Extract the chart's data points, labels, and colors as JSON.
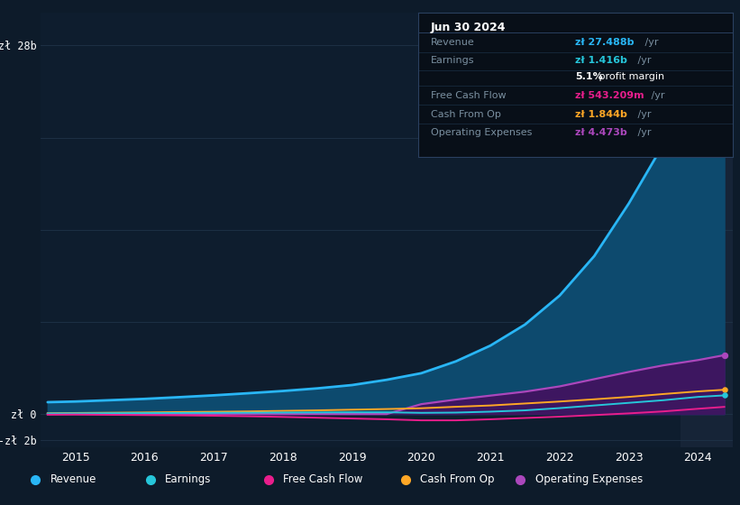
{
  "bg_color": "#0d1b2a",
  "plot_bg_color": "#0e1d2e",
  "highlight_bg": "#162437",
  "grid_color": "#1f3348",
  "years": [
    2014.6,
    2015.0,
    2015.5,
    2016.0,
    2016.5,
    2017.0,
    2017.5,
    2018.0,
    2018.5,
    2019.0,
    2019.5,
    2020.0,
    2020.5,
    2021.0,
    2021.5,
    2022.0,
    2022.5,
    2023.0,
    2023.5,
    2024.0,
    2024.38
  ],
  "revenue": [
    0.9,
    0.95,
    1.05,
    1.15,
    1.28,
    1.42,
    1.58,
    1.75,
    1.95,
    2.2,
    2.6,
    3.1,
    4.0,
    5.2,
    6.8,
    9.0,
    12.0,
    16.0,
    20.5,
    24.5,
    27.488
  ],
  "earnings": [
    0.04,
    0.05,
    0.06,
    0.07,
    0.08,
    0.09,
    0.1,
    0.11,
    0.12,
    0.13,
    0.13,
    0.09,
    0.11,
    0.18,
    0.28,
    0.45,
    0.65,
    0.85,
    1.05,
    1.3,
    1.416
  ],
  "fcf": [
    -0.05,
    -0.04,
    -0.06,
    -0.08,
    -0.1,
    -0.13,
    -0.17,
    -0.22,
    -0.28,
    -0.34,
    -0.4,
    -0.48,
    -0.48,
    -0.4,
    -0.3,
    -0.2,
    -0.08,
    0.05,
    0.2,
    0.4,
    0.543
  ],
  "cfo": [
    0.06,
    0.08,
    0.1,
    0.12,
    0.15,
    0.17,
    0.2,
    0.24,
    0.28,
    0.33,
    0.38,
    0.44,
    0.55,
    0.65,
    0.8,
    0.95,
    1.12,
    1.3,
    1.52,
    1.72,
    1.844
  ],
  "opex": [
    0.0,
    0.0,
    0.0,
    0.0,
    0.0,
    0.0,
    0.0,
    0.0,
    0.0,
    0.0,
    0.0,
    0.75,
    1.1,
    1.4,
    1.7,
    2.1,
    2.65,
    3.2,
    3.7,
    4.1,
    4.473
  ],
  "revenue_color": "#29b6f6",
  "earnings_color": "#26c6da",
  "fcf_color": "#e91e8c",
  "cfo_color": "#ffa726",
  "opex_color": "#ab47bc",
  "revenue_fill": "#0d4a6e",
  "opex_fill": "#3d1660",
  "ylim": [
    -2.5,
    30.5
  ],
  "xlim": [
    2014.5,
    2024.5
  ],
  "ytick_vals": [
    -2,
    0,
    28
  ],
  "ytick_labels": [
    "-zł 2b",
    "zł 0",
    "zł 28b"
  ],
  "xtick_vals": [
    2015,
    2016,
    2017,
    2018,
    2019,
    2020,
    2021,
    2022,
    2023,
    2024
  ],
  "grid_lines": [
    -2,
    0,
    7,
    14,
    21,
    28
  ],
  "highlight_x_start": 2023.75,
  "highlight_x_end": 2024.5,
  "info_box_rows": [
    {
      "label": "Revenue",
      "val": "zł 27.488b",
      "suffix": " /yr",
      "val_color": "#29b6f6"
    },
    {
      "label": "Earnings",
      "val": "zł 1.416b",
      "suffix": " /yr",
      "val_color": "#26c6da"
    },
    {
      "label": "",
      "val": "5.1%",
      "suffix": " profit margin",
      "val_color": "#ffffff"
    },
    {
      "label": "Free Cash Flow",
      "val": "zł 543.209m",
      "suffix": " /yr",
      "val_color": "#e91e8c"
    },
    {
      "label": "Cash From Op",
      "val": "zł 1.844b",
      "suffix": " /yr",
      "val_color": "#ffa726"
    },
    {
      "label": "Operating Expenses",
      "val": "zł 4.473b",
      "suffix": " /yr",
      "val_color": "#ab47bc"
    }
  ],
  "legend": [
    {
      "label": "Revenue",
      "color": "#29b6f6"
    },
    {
      "label": "Earnings",
      "color": "#26c6da"
    },
    {
      "label": "Free Cash Flow",
      "color": "#e91e8c"
    },
    {
      "label": "Cash From Op",
      "color": "#ffa726"
    },
    {
      "label": "Operating Expenses",
      "color": "#ab47bc"
    }
  ]
}
